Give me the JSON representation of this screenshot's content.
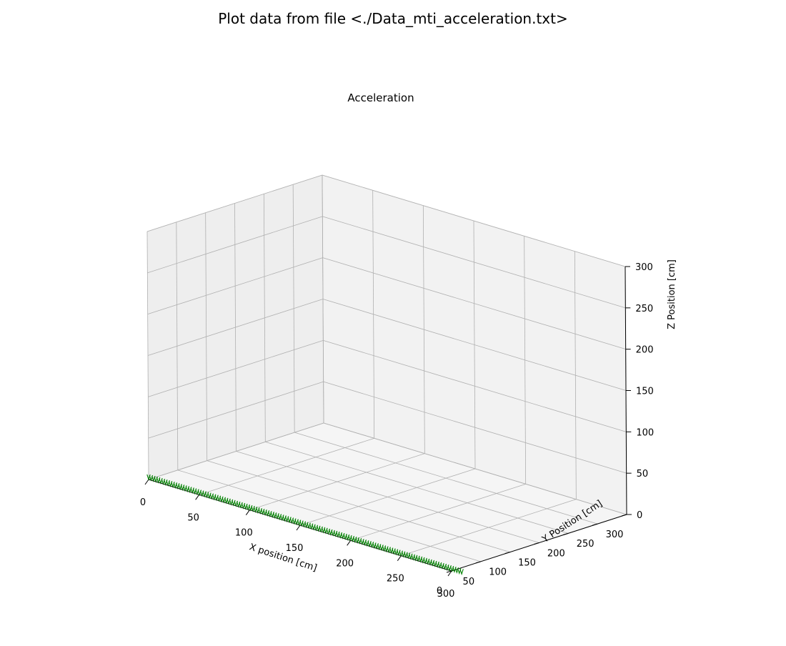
{
  "figure": {
    "suptitle": "Plot data from file <./Data_mti_acceleration.txt>"
  },
  "chart_data": {
    "type": "3d-quiver",
    "title": "Acceleration",
    "xlabel": "X position [cm]",
    "ylabel": "Y Position [cm]",
    "zlabel": "Z Position [cm]",
    "xlim": [
      0,
      300
    ],
    "ylim": [
      0,
      300
    ],
    "zlim": [
      0,
      300
    ],
    "xticks": [
      "0",
      "50",
      "100",
      "150",
      "200",
      "250",
      "300"
    ],
    "yticks": [
      "0",
      "50",
      "100",
      "150",
      "200",
      "250",
      "300"
    ],
    "zticks": [
      "0",
      "50",
      "100",
      "150",
      "200",
      "250",
      "300"
    ],
    "grid": true,
    "colors": {
      "marker": "#008000",
      "pane_back": "#f2f2f2",
      "pane_side": "#eeeeee",
      "pane_floor": "#f5f5f5",
      "grid": "#b0b0b0"
    },
    "series": [
      {
        "marker": "arrow",
        "x_start": 0,
        "x_end": 310,
        "y": 0,
        "z": 0,
        "count": 130
      }
    ]
  }
}
